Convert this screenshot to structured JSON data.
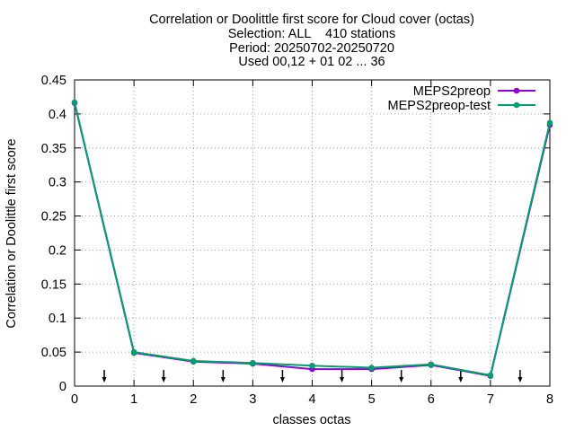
{
  "chart_data": {
    "type": "line",
    "title_lines": [
      "Correlation or Doolittle first score  for Cloud cover (octas)",
      "Selection: ALL    410 stations",
      "Period: 20250702-20250720",
      "Used 00,12 + 01 02 ... 36"
    ],
    "xlabel": "classes octas",
    "ylabel": "Correlation or Doolittle first score",
    "xlim": [
      0,
      8
    ],
    "ylim": [
      0,
      0.45
    ],
    "x_ticks": [
      0,
      1,
      2,
      3,
      4,
      5,
      6,
      7,
      8
    ],
    "x_tick_labels": [
      "0",
      "1",
      "2",
      "3",
      "4",
      "5",
      "6",
      "7",
      "8"
    ],
    "y_ticks": [
      0,
      0.05,
      0.1,
      0.15,
      0.2,
      0.25,
      0.3,
      0.35,
      0.4,
      0.45
    ],
    "y_tick_labels": [
      "0",
      "0.05",
      "0.1",
      "0.15",
      "0.2",
      "0.25",
      "0.3",
      "0.35",
      "0.4",
      "0.45"
    ],
    "grid": true,
    "legend_position": "top-right",
    "x": [
      0,
      1,
      2,
      3,
      4,
      5,
      6,
      7,
      8
    ],
    "series": [
      {
        "name": "MEPS2preop",
        "color": "#9400d3",
        "values": [
          0.416,
          0.049,
          0.036,
          0.033,
          0.025,
          0.025,
          0.031,
          0.015,
          0.384
        ]
      },
      {
        "name": "MEPS2preop-test",
        "color": "#009e73",
        "values": [
          0.417,
          0.05,
          0.037,
          0.034,
          0.03,
          0.027,
          0.032,
          0.016,
          0.387
        ]
      }
    ],
    "class_boundary_arrows_x": [
      0.5,
      1.5,
      2.5,
      3.5,
      4.5,
      5.5,
      6.5,
      7.5
    ]
  }
}
